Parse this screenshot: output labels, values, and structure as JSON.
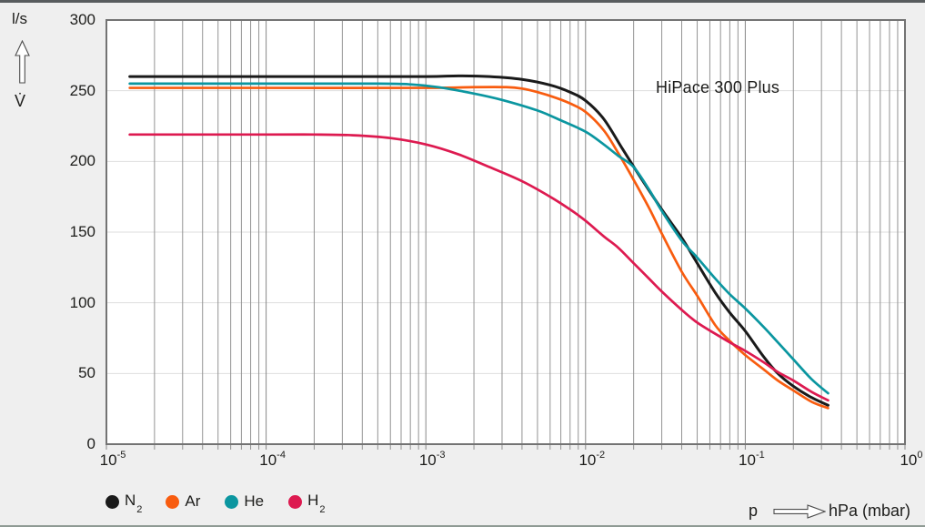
{
  "chart_data": {
    "type": "line",
    "title": "HiPace 300 Plus",
    "x_axis": {
      "scale": "log",
      "min_exponent": -5,
      "max_exponent": 0,
      "tick_base": "10",
      "tick_exponents": [
        -5,
        -4,
        -3,
        -2,
        -1,
        0
      ],
      "symbol": "p",
      "unit": "hPa (mbar)"
    },
    "y_axis": {
      "min": 0,
      "max": 300,
      "tick_values": [
        300,
        250,
        200,
        150,
        100,
        50,
        0
      ],
      "gridline_values": [
        250,
        200,
        150,
        100,
        50
      ],
      "unit": "l/s",
      "quantity": "V̇"
    },
    "grid": {
      "major_color": "#878787",
      "minor_color": "#939393",
      "horizontal_color": "#dedede",
      "frame_color": "#737373"
    },
    "legend_position": "bottom-left",
    "series": [
      {
        "name": "N2",
        "label": "N",
        "subscript": "2",
        "color": "#1a1a1a",
        "stroke_width": 3,
        "points": [
          [
            1.4e-05,
            260
          ],
          [
            3e-05,
            260
          ],
          [
            0.0001,
            260
          ],
          [
            0.0003,
            260
          ],
          [
            0.001,
            260
          ],
          [
            0.0016,
            260.5
          ],
          [
            0.0025,
            260
          ],
          [
            0.004,
            258
          ],
          [
            0.006,
            254
          ],
          [
            0.008,
            249
          ],
          [
            0.01,
            243
          ],
          [
            0.013,
            230
          ],
          [
            0.017,
            209
          ],
          [
            0.022,
            189
          ],
          [
            0.03,
            166
          ],
          [
            0.04,
            146
          ],
          [
            0.05,
            128
          ],
          [
            0.065,
            107
          ],
          [
            0.08,
            93
          ],
          [
            0.1,
            80
          ],
          [
            0.13,
            62
          ],
          [
            0.16,
            50
          ],
          [
            0.2,
            41
          ],
          [
            0.26,
            33
          ],
          [
            0.33,
            27.5
          ]
        ]
      },
      {
        "name": "Ar",
        "label": "Ar",
        "subscript": "",
        "color": "#f85c0f",
        "stroke_width": 2.7,
        "points": [
          [
            1.4e-05,
            252
          ],
          [
            0.0001,
            252
          ],
          [
            0.001,
            252
          ],
          [
            0.002,
            252.5
          ],
          [
            0.0032,
            252.5
          ],
          [
            0.004,
            251.5
          ],
          [
            0.005,
            249
          ],
          [
            0.0065,
            245
          ],
          [
            0.008,
            241
          ],
          [
            0.01,
            235
          ],
          [
            0.013,
            222
          ],
          [
            0.016,
            206
          ],
          [
            0.02,
            187
          ],
          [
            0.025,
            167
          ],
          [
            0.03,
            149
          ],
          [
            0.04,
            122
          ],
          [
            0.05,
            105
          ],
          [
            0.065,
            84
          ],
          [
            0.08,
            73
          ],
          [
            0.1,
            63
          ],
          [
            0.13,
            53
          ],
          [
            0.16,
            45
          ],
          [
            0.2,
            38
          ],
          [
            0.26,
            30
          ],
          [
            0.33,
            25.5
          ]
        ]
      },
      {
        "name": "He",
        "label": "He",
        "subscript": "",
        "color": "#0b96a0",
        "stroke_width": 2.7,
        "points": [
          [
            1.4e-05,
            255
          ],
          [
            0.0001,
            255
          ],
          [
            0.0005,
            255
          ],
          [
            0.0008,
            254.5
          ],
          [
            0.0012,
            252.5
          ],
          [
            0.002,
            248
          ],
          [
            0.003,
            243.5
          ],
          [
            0.005,
            236
          ],
          [
            0.007,
            229
          ],
          [
            0.01,
            221
          ],
          [
            0.013,
            212
          ],
          [
            0.016,
            204
          ],
          [
            0.02,
            196
          ],
          [
            0.025,
            180
          ],
          [
            0.03,
            165
          ],
          [
            0.04,
            144
          ],
          [
            0.05,
            132
          ],
          [
            0.065,
            117
          ],
          [
            0.08,
            106
          ],
          [
            0.1,
            96
          ],
          [
            0.13,
            83
          ],
          [
            0.16,
            72
          ],
          [
            0.2,
            60
          ],
          [
            0.26,
            46
          ],
          [
            0.33,
            36
          ]
        ]
      },
      {
        "name": "H2",
        "label": "H",
        "subscript": "2",
        "color": "#dd1a50",
        "stroke_width": 2.7,
        "points": [
          [
            1.4e-05,
            219
          ],
          [
            0.0001,
            219
          ],
          [
            0.0002,
            219
          ],
          [
            0.00035,
            218.5
          ],
          [
            0.0006,
            216.5
          ],
          [
            0.001,
            212
          ],
          [
            0.0016,
            205
          ],
          [
            0.0025,
            196
          ],
          [
            0.004,
            186
          ],
          [
            0.006,
            175
          ],
          [
            0.008,
            166
          ],
          [
            0.01,
            158
          ],
          [
            0.013,
            147
          ],
          [
            0.016,
            139
          ],
          [
            0.02,
            128
          ],
          [
            0.025,
            117
          ],
          [
            0.03,
            108
          ],
          [
            0.04,
            95
          ],
          [
            0.05,
            86
          ],
          [
            0.065,
            78
          ],
          [
            0.08,
            72
          ],
          [
            0.1,
            66
          ],
          [
            0.13,
            58
          ],
          [
            0.16,
            51
          ],
          [
            0.2,
            45
          ],
          [
            0.26,
            37
          ],
          [
            0.33,
            31
          ]
        ]
      }
    ]
  }
}
